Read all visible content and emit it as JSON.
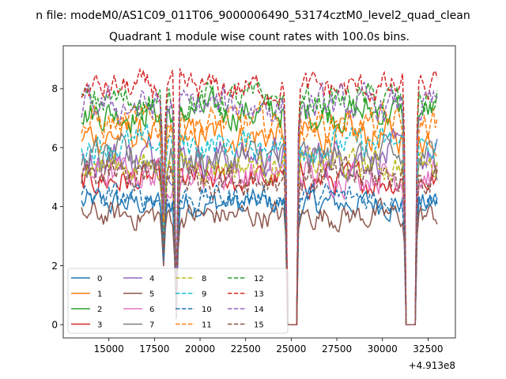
{
  "figure": {
    "suptitle": "n file: modeM0/AS1C09_011T06_9000006490_53174cztM0_level2_quad_clean",
    "title": "Quadrant 1 module wise count rates with 100.0s bins.",
    "offset_label": "+4.913e8"
  },
  "chart_data": {
    "type": "line",
    "title": "Quadrant 1 module wise count rates with 100.0s bins.",
    "xlabel": "",
    "ylabel": "",
    "x_offset": 491300000,
    "xlim": [
      12500,
      34000
    ],
    "ylim": [
      -0.45,
      9.45
    ],
    "xticks": [
      15000,
      17500,
      20000,
      22500,
      25000,
      27500,
      30000,
      32500
    ],
    "yticks": [
      0,
      2,
      4,
      6,
      8
    ],
    "x_range": [
      13500,
      33000
    ],
    "bin_seconds": 100,
    "gaps": [
      [
        24800,
        25300
      ],
      [
        31300,
        31800
      ]
    ],
    "dips": [
      [
        18000,
        0.5
      ],
      [
        18700,
        0.05
      ]
    ],
    "grid": false,
    "legend": {
      "placement": "lower-left",
      "columns": 4
    },
    "series": [
      {
        "name": "0",
        "mean": 4.1,
        "noise": 0.35,
        "color": "#1f77b4",
        "dash": "solid"
      },
      {
        "name": "1",
        "mean": 6.4,
        "noise": 0.45,
        "color": "#ff7f0e",
        "dash": "solid"
      },
      {
        "name": "2",
        "mean": 7.2,
        "noise": 0.45,
        "color": "#2ca02c",
        "dash": "solid"
      },
      {
        "name": "3",
        "mean": 4.9,
        "noise": 0.4,
        "color": "#d62728",
        "dash": "solid"
      },
      {
        "name": "4",
        "mean": 5.7,
        "noise": 0.5,
        "color": "#9467bd",
        "dash": "solid"
      },
      {
        "name": "5",
        "mean": 3.7,
        "noise": 0.35,
        "color": "#8c564b",
        "dash": "solid"
      },
      {
        "name": "6",
        "mean": 5.1,
        "noise": 0.45,
        "color": "#e377c2",
        "dash": "solid"
      },
      {
        "name": "7",
        "mean": 5.6,
        "noise": 0.5,
        "color": "#7f7f7f",
        "dash": "solid"
      },
      {
        "name": "8",
        "mean": 5.4,
        "noise": 0.4,
        "color": "#bcbd22",
        "dash": "dashed"
      },
      {
        "name": "9",
        "mean": 6.1,
        "noise": 0.4,
        "color": "#17becf",
        "dash": "dashed"
      },
      {
        "name": "10",
        "mean": 4.3,
        "noise": 0.35,
        "color": "#1f77b4",
        "dash": "dashed"
      },
      {
        "name": "11",
        "mean": 6.8,
        "noise": 0.45,
        "color": "#ff7f0e",
        "dash": "dashed"
      },
      {
        "name": "12",
        "mean": 7.6,
        "noise": 0.45,
        "color": "#2ca02c",
        "dash": "dashed"
      },
      {
        "name": "13",
        "mean": 8.0,
        "noise": 0.4,
        "color": "#d62728",
        "dash": "dashed"
      },
      {
        "name": "14",
        "mean": 7.4,
        "noise": 0.45,
        "color": "#9467bd",
        "dash": "dashed"
      },
      {
        "name": "15",
        "mean": 5.0,
        "noise": 0.45,
        "color": "#8c564b",
        "dash": "dashed"
      }
    ]
  }
}
